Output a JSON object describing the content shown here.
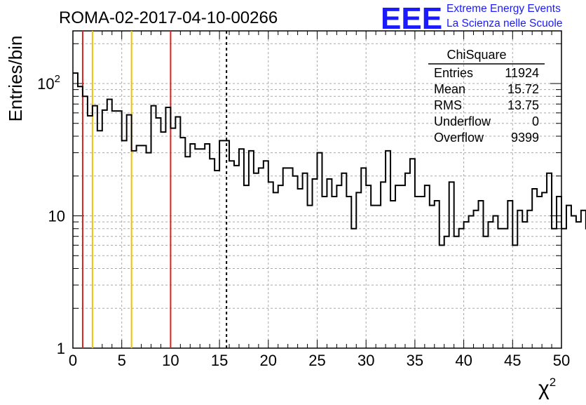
{
  "title": "ROMA-02-2017-04-10-00266",
  "logo": {
    "letters": "EEE",
    "line1": "Extreme Energy Events",
    "line2": "La Scienza nelle Scuole",
    "color": "#1a1aff"
  },
  "stats": {
    "title": "ChiSquare",
    "rows": [
      {
        "label": "Entries",
        "value": "11924"
      },
      {
        "label": "Mean",
        "value": "15.72"
      },
      {
        "label": "RMS",
        "value": "13.75"
      },
      {
        "label": "Underflow",
        "value": "0"
      },
      {
        "label": "Overflow",
        "value": "9399"
      }
    ]
  },
  "chart_data": {
    "type": "bar",
    "subtype": "step-histogram",
    "xlabel": "χ",
    "xlabel_superscript": "2",
    "ylabel": "Entries/bin",
    "xlim": [
      0,
      50
    ],
    "ylim": [
      1,
      250
    ],
    "yscale": "log",
    "grid": true,
    "x_ticks": [
      "0",
      "5",
      "10",
      "15",
      "20",
      "25",
      "30",
      "35",
      "40",
      "45",
      "50"
    ],
    "y_ticks": [
      {
        "value": 1,
        "base": "1",
        "exp": ""
      },
      {
        "value": 10,
        "base": "10",
        "exp": ""
      },
      {
        "value": 100,
        "base": "10",
        "exp": "2"
      }
    ],
    "bin_width": 0.5,
    "values": [
      120,
      95,
      80,
      57,
      68,
      44,
      63,
      76,
      62,
      62,
      37,
      58,
      31,
      34,
      34,
      30,
      68,
      55,
      43,
      66,
      46,
      56,
      39,
      28,
      35,
      32,
      32,
      35,
      27,
      22,
      37,
      37,
      26,
      24,
      32,
      17,
      31,
      21,
      23,
      26,
      18,
      15,
      17,
      23,
      23,
      20,
      16,
      21,
      12,
      19,
      30,
      14,
      19,
      14,
      17,
      21,
      14,
      8,
      15,
      23,
      17,
      12,
      12,
      18,
      31,
      13,
      17,
      17,
      21,
      27,
      14,
      14,
      17,
      12,
      13,
      6,
      7,
      18,
      7,
      8,
      9,
      10,
      11,
      13,
      7,
      9,
      10,
      8,
      8,
      13,
      6,
      11,
      9,
      11,
      16,
      14,
      15,
      21,
      8,
      14,
      8,
      12,
      10,
      9,
      11,
      8,
      8,
      9,
      20,
      12,
      10,
      11,
      14,
      6,
      11,
      11,
      9,
      11,
      11,
      17,
      12,
      6,
      10,
      11,
      9,
      6,
      16,
      16,
      14,
      5,
      18,
      9,
      15,
      12,
      8,
      9,
      10,
      10,
      13,
      6,
      6,
      13,
      10,
      13,
      8,
      10,
      13,
      14,
      10,
      14,
      11,
      10,
      11,
      15,
      11,
      8,
      9,
      11,
      8,
      11,
      8,
      16,
      13,
      9,
      14,
      13,
      8,
      12,
      16,
      7,
      7,
      8,
      9,
      13,
      9,
      13,
      8,
      14,
      12,
      16,
      13,
      10,
      10,
      14,
      13,
      11,
      14,
      12,
      11,
      16,
      10,
      16,
      11,
      9,
      14,
      11,
      10,
      12,
      12,
      13
    ],
    "vertical_lines": [
      {
        "x": 1,
        "color": "#e11f1f",
        "style": "solid"
      },
      {
        "x": 2,
        "color": "#f2c200",
        "style": "solid"
      },
      {
        "x": 6,
        "color": "#f2c200",
        "style": "solid"
      },
      {
        "x": 10,
        "color": "#e11f1f",
        "style": "solid"
      },
      {
        "x": 15.72,
        "color": "#000000",
        "style": "dashed"
      }
    ]
  }
}
